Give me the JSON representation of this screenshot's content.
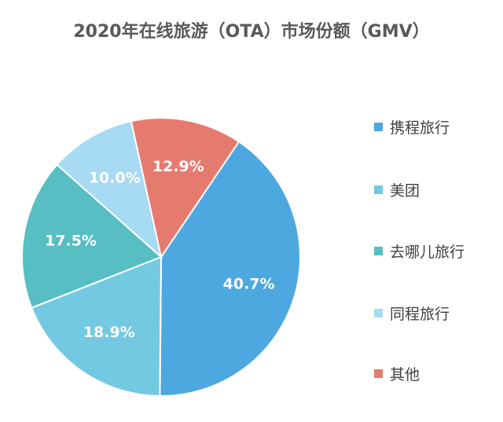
{
  "chart_data": {
    "type": "pie",
    "title": "2020年在线旅游（OTA）市场份额（GMV）",
    "categories": [
      "携程旅行",
      "美团",
      "去哪儿旅行",
      "同程旅行",
      "其他"
    ],
    "values": [
      40.7,
      18.9,
      17.5,
      10.0,
      12.9
    ],
    "value_labels": [
      "40.7%",
      "18.9%",
      "17.5%",
      "10.0%",
      "12.9%"
    ],
    "colors": [
      "#4EA8E0",
      "#74C9E2",
      "#57BEC3",
      "#A7DAF3",
      "#E57B6E"
    ],
    "legend_position": "right"
  }
}
